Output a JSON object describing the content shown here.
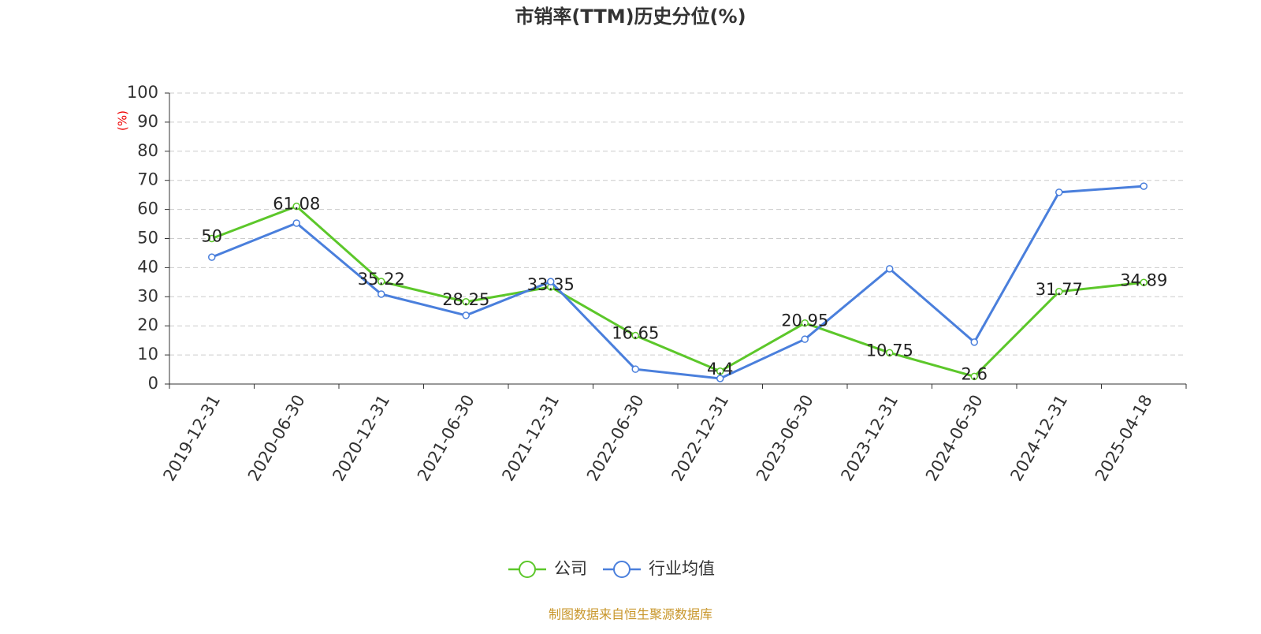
{
  "chart_data": {
    "type": "line",
    "title": "市销率(TTM)历史分位(%)",
    "y_label": "(%)",
    "categories": [
      "2019-12-31",
      "2020-06-30",
      "2020-12-31",
      "2021-06-30",
      "2021-12-31",
      "2022-06-30",
      "2022-12-31",
      "2023-06-30",
      "2023-12-31",
      "2024-06-30",
      "2024-12-31",
      "2025-04-18"
    ],
    "series": [
      {
        "name": "公司",
        "color": "#5cc72a",
        "values": [
          50,
          61.08,
          35.22,
          28.25,
          33.35,
          16.65,
          4.4,
          20.95,
          10.75,
          2.6,
          31.77,
          34.89
        ],
        "labels": true
      },
      {
        "name": "行业均值",
        "color": "#4a7fdc",
        "values": [
          43.6,
          55.3,
          30.9,
          23.6,
          35.2,
          5.1,
          1.9,
          15.4,
          39.6,
          14.4,
          65.9,
          68.0
        ],
        "labels": false
      }
    ],
    "ylim": [
      0,
      100
    ],
    "yticks": [
      0,
      10,
      20,
      30,
      40,
      50,
      60,
      70,
      80,
      90,
      100
    ],
    "grid": true,
    "legend": "bottom",
    "source": "制图数据来自恒生聚源数据库"
  }
}
